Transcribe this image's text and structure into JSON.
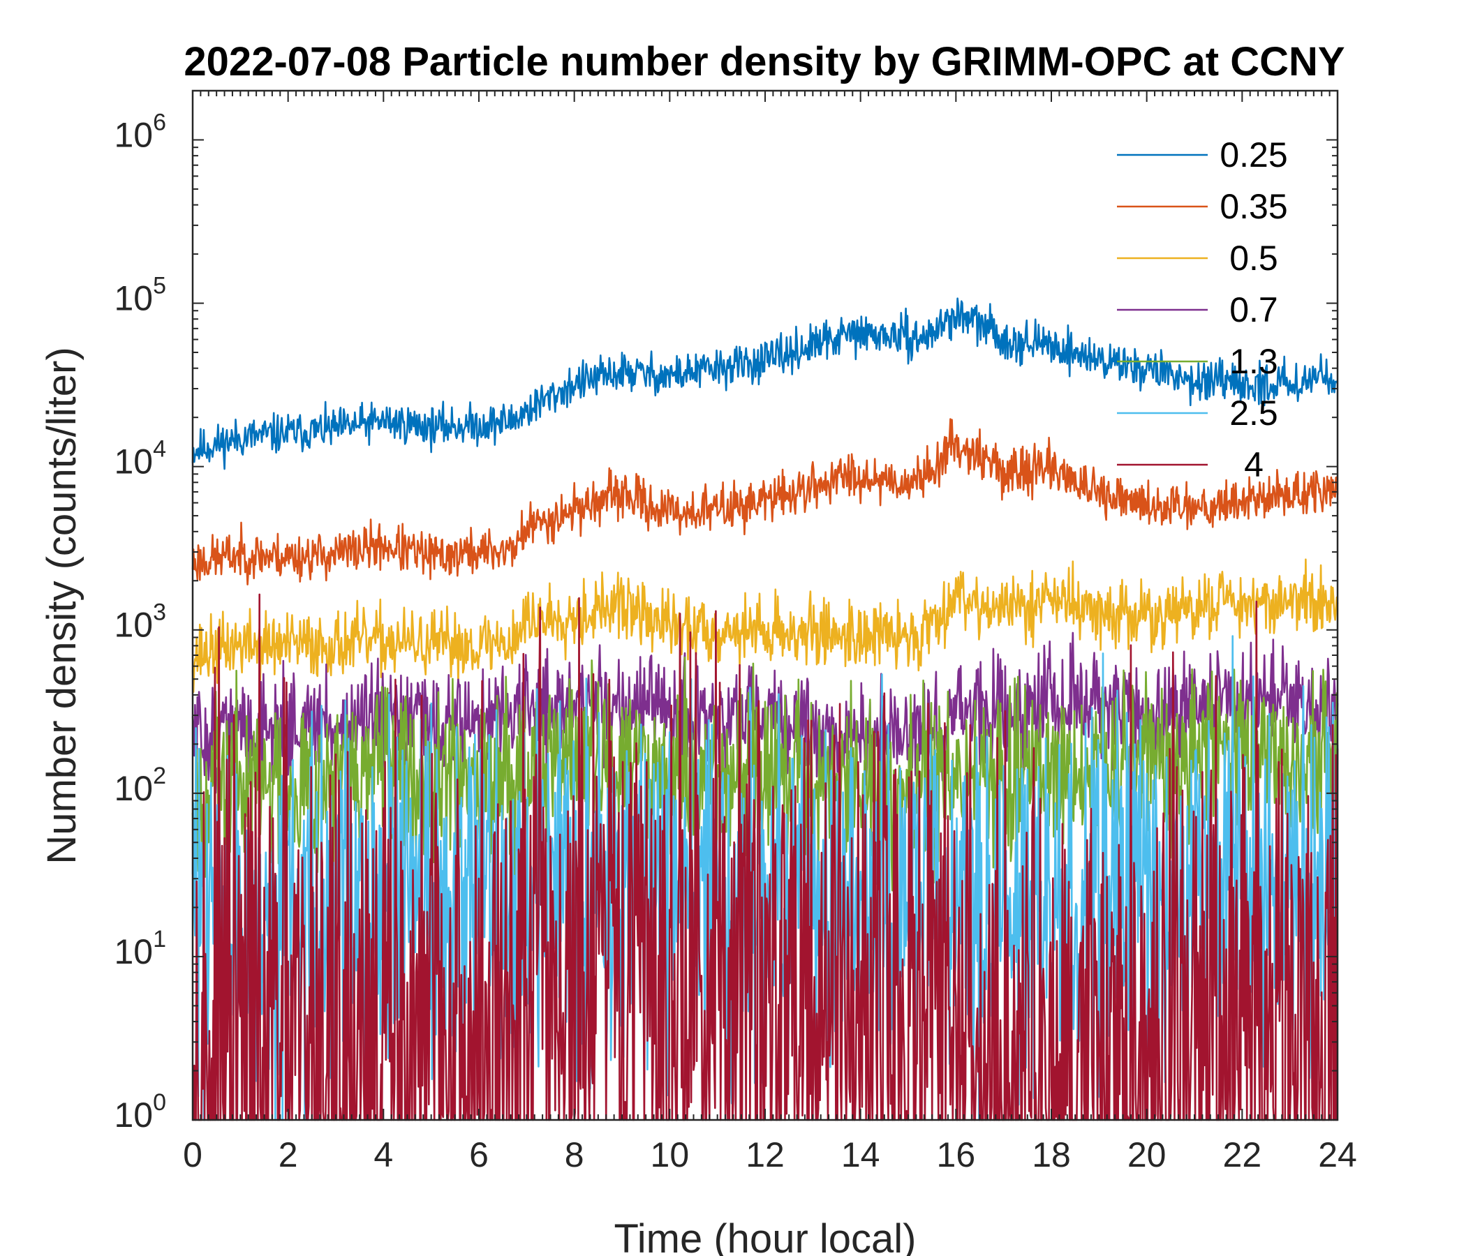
{
  "chart_data": {
    "type": "line",
    "title": "2022-07-08 Particle number density by GRIMM-OPC at CCNY",
    "xlabel": "Time (hour local)",
    "ylabel": "Number density (counts/liter)",
    "xlim": [
      0,
      24
    ],
    "ylim": [
      1,
      2000000
    ],
    "yscale": "log",
    "xticks": [
      0,
      2,
      4,
      6,
      8,
      10,
      12,
      14,
      16,
      18,
      20,
      22,
      24
    ],
    "xtick_labels": [
      "0",
      "2",
      "4",
      "6",
      "8",
      "10",
      "12",
      "14",
      "16",
      "18",
      "20",
      "22",
      "24"
    ],
    "yticks": [
      1,
      10,
      100,
      1000,
      10000,
      100000,
      1000000
    ],
    "ytick_labels": [
      {
        "base": "10",
        "exp": "0"
      },
      {
        "base": "10",
        "exp": "1"
      },
      {
        "base": "10",
        "exp": "2"
      },
      {
        "base": "10",
        "exp": "3"
      },
      {
        "base": "10",
        "exp": "4"
      },
      {
        "base": "10",
        "exp": "5"
      },
      {
        "base": "10",
        "exp": "6"
      }
    ],
    "legend_position": "top-right",
    "x": [
      0,
      1,
      2,
      3,
      4,
      5,
      6,
      6.7,
      7,
      8,
      9,
      10,
      11,
      12,
      13,
      13.8,
      15,
      15.3,
      16,
      16.7,
      17,
      18,
      18.3,
      19,
      20,
      21,
      21.6,
      22,
      23,
      24
    ],
    "series": [
      {
        "name": "0.25",
        "color": "#0072BD",
        "noise": 0.06,
        "seed": 11,
        "values": [
          12500,
          15000,
          16000,
          17000,
          19000,
          17500,
          18000,
          19000,
          22000,
          32000,
          38000,
          36000,
          40000,
          44000,
          55000,
          65000,
          62000,
          60000,
          85000,
          70000,
          60000,
          55000,
          52000,
          45000,
          40000,
          34000,
          32000,
          31000,
          33000,
          37000
        ]
      },
      {
        "name": "0.35",
        "color": "#D95319",
        "noise": 0.07,
        "seed": 23,
        "values": [
          2600,
          2900,
          2800,
          2900,
          3300,
          2800,
          3000,
          3100,
          4200,
          5500,
          6800,
          5200,
          5500,
          6200,
          7500,
          9000,
          8000,
          8500,
          14000,
          11000,
          9000,
          10000,
          9000,
          6500,
          5800,
          5800,
          6000,
          6200,
          6800,
          7000
        ]
      },
      {
        "name": "0.5",
        "color": "#EDB120",
        "noise": 0.1,
        "seed": 37,
        "values": [
          700,
          820,
          800,
          820,
          850,
          800,
          820,
          850,
          1150,
          1250,
          1400,
          1050,
          1000,
          1000,
          950,
          950,
          900,
          950,
          1700,
          1400,
          1300,
          1600,
          1500,
          1250,
          1200,
          1300,
          1600,
          1500,
          1500,
          1450
        ]
      },
      {
        "name": "0.7",
        "color": "#7E2F8E",
        "noise": 0.16,
        "seed": 51,
        "values": [
          220,
          250,
          260,
          260,
          260,
          270,
          280,
          300,
          330,
          350,
          360,
          300,
          280,
          270,
          250,
          220,
          210,
          220,
          330,
          290,
          300,
          380,
          380,
          320,
          300,
          320,
          430,
          370,
          340,
          330
        ]
      },
      {
        "name": "1.3",
        "color": "#77AC30",
        "noise": 0.26,
        "seed": 67,
        "values": [
          95,
          115,
          120,
          125,
          130,
          130,
          135,
          140,
          150,
          160,
          160,
          140,
          130,
          130,
          120,
          115,
          100,
          110,
          130,
          120,
          125,
          140,
          140,
          140,
          160,
          180,
          260,
          200,
          170,
          160
        ]
      },
      {
        "name": "2.5",
        "color": "#4DBEEE",
        "noise": 0.55,
        "seed": 83,
        "values": [
          18,
          20,
          20,
          20,
          21,
          20,
          20,
          22,
          30,
          32,
          33,
          30,
          29,
          28,
          27,
          25,
          24,
          24,
          15,
          20,
          22,
          24,
          24,
          24,
          22,
          25,
          40,
          30,
          28,
          27
        ]
      },
      {
        "name": "4",
        "color": "#A2142F",
        "noise": 1.0,
        "seed": 97,
        "values": [
          2,
          2.5,
          2.5,
          2.5,
          2.5,
          2.5,
          2.5,
          2.5,
          6,
          6,
          6,
          6,
          6,
          6,
          6,
          6,
          5,
          5,
          2,
          2,
          2.5,
          2.8,
          2.8,
          2.5,
          2.5,
          3,
          3.5,
          3.5,
          3.5,
          3
        ]
      }
    ]
  }
}
